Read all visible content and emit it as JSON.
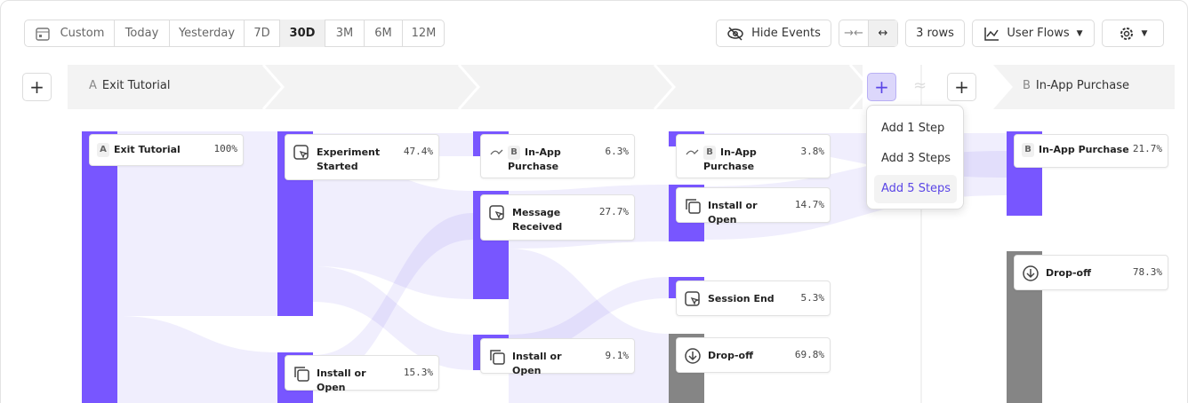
{
  "toolbar": {
    "date_ranges": [
      "Custom",
      "Today",
      "Yesterday",
      "7D",
      "30D",
      "3M",
      "6M",
      "12M"
    ],
    "selected_range": 4,
    "hide_events": "Hide Events",
    "rows": "3 rows",
    "view": "User Flows"
  },
  "step_headers": [
    {
      "letter": "A",
      "label": "Exit Tutorial"
    },
    {
      "letter": "B",
      "label": "In-App Purchase"
    }
  ],
  "columns": [
    {
      "nodes": [
        {
          "letter": "A",
          "label": "Exit Tutorial",
          "pct": "100%"
        }
      ]
    },
    {
      "nodes": [
        {
          "label": "Experiment Started",
          "pct": "47.4%"
        },
        {
          "label": "Install or Open",
          "pct": "15.3%"
        }
      ]
    },
    {
      "nodes": [
        {
          "letter": "B",
          "label": "In-App Purchase",
          "pct": "6.3%"
        },
        {
          "label": "Message Received",
          "pct": "27.7%"
        },
        {
          "label": "Install or Open",
          "pct": "9.1%"
        }
      ]
    },
    {
      "nodes": [
        {
          "letter": "B",
          "label": "In-App Purchase",
          "pct": "3.8%"
        },
        {
          "label": "Install or Open",
          "pct": "14.7%"
        },
        {
          "label": "Session End",
          "pct": "5.3%"
        },
        {
          "label": "Drop-off",
          "pct": "69.8%"
        }
      ]
    },
    {
      "nodes": [
        {
          "letter": "B",
          "label": "In-App Purchase",
          "pct": "21.7%"
        },
        {
          "label": "Drop-off",
          "pct": "78.3%"
        }
      ]
    }
  ],
  "add_menu": [
    "Add 1 Step",
    "Add 3 Steps",
    "Add 5 Steps"
  ]
}
